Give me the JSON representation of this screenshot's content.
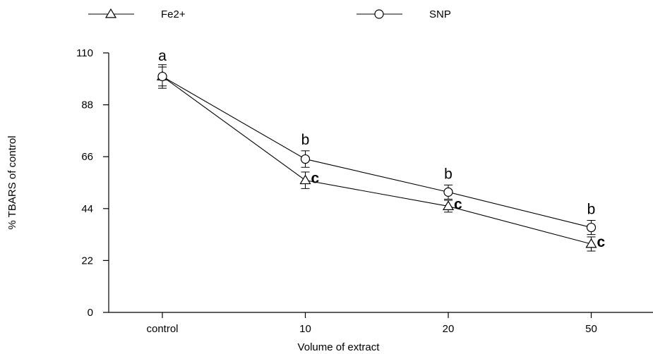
{
  "chart_data": {
    "type": "line",
    "title": "",
    "xlabel": "Volume of extract",
    "ylabel": "% TBARS of control",
    "categories": [
      "control",
      "10",
      "20",
      "50"
    ],
    "ylim": [
      0,
      110
    ],
    "yticks": [
      0,
      22,
      44,
      66,
      88,
      110
    ],
    "grid": false,
    "legend_position": "top",
    "series": [
      {
        "name": "Fe2+",
        "marker": "triangle",
        "values": [
          100,
          56,
          45,
          29
        ],
        "errors": [
          5,
          3.5,
          2.5,
          3
        ],
        "labels": [
          "",
          "c",
          "c",
          "c"
        ]
      },
      {
        "name": "SNP",
        "marker": "circle",
        "values": [
          100,
          65,
          51,
          36
        ],
        "errors": [
          4,
          3.5,
          3,
          3
        ],
        "labels": [
          "a",
          "b",
          "b",
          "b"
        ]
      }
    ]
  }
}
